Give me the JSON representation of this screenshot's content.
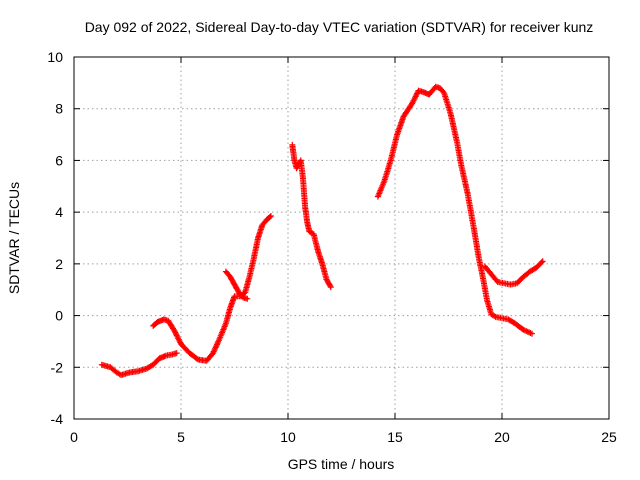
{
  "chart_data": {
    "type": "scatter",
    "title": "Day 092 of 2022, Sidereal Day-to-day VTEC variation (SDTVAR) for receiver kunz",
    "xlabel": "GPS time / hours",
    "ylabel": "SDTVAR / TECUs",
    "xlim": [
      0,
      25
    ],
    "ylim": [
      -4,
      10
    ],
    "xticks": [
      0,
      5,
      10,
      15,
      20,
      25
    ],
    "yticks": [
      -4,
      -2,
      0,
      2,
      4,
      6,
      8,
      10
    ],
    "grid": true,
    "marker": "plus",
    "color": "#ff0000",
    "series": [
      {
        "name": "seg1",
        "x": [
          1.3,
          1.7,
          2.0,
          2.2,
          2.6,
          3.0,
          3.4,
          3.7,
          4.0,
          4.3,
          4.6,
          4.8
        ],
        "y": [
          -1.9,
          -2.0,
          -2.2,
          -2.3,
          -2.2,
          -2.15,
          -2.05,
          -1.9,
          -1.65,
          -1.55,
          -1.5,
          -1.45
        ]
      },
      {
        "name": "seg2",
        "x": [
          3.7,
          3.9,
          4.2,
          4.4,
          4.7,
          5.0,
          5.4,
          5.8,
          6.2,
          6.5,
          6.8,
          7.1,
          7.3,
          7.5,
          7.8,
          8.0,
          8.2,
          8.4,
          8.6,
          8.8,
          9.0,
          9.2
        ],
        "y": [
          -0.4,
          -0.25,
          -0.15,
          -0.2,
          -0.6,
          -1.1,
          -1.45,
          -1.7,
          -1.75,
          -1.45,
          -0.9,
          -0.3,
          0.3,
          0.75,
          0.75,
          0.9,
          1.5,
          2.2,
          3.0,
          3.5,
          3.7,
          3.85
        ]
      },
      {
        "name": "seg3",
        "x": [
          7.1,
          7.3,
          7.5,
          7.7,
          7.9,
          8.1
        ],
        "y": [
          1.7,
          1.5,
          1.2,
          0.9,
          0.7,
          0.65
        ]
      },
      {
        "name": "seg4",
        "x": [
          10.2,
          10.3,
          10.4,
          10.6,
          10.7,
          10.8,
          10.9,
          11.0,
          11.2,
          11.4,
          11.6,
          11.8,
          12.0
        ],
        "y": [
          6.6,
          6.0,
          5.7,
          6.0,
          5.3,
          4.2,
          3.6,
          3.25,
          3.15,
          2.5,
          2.0,
          1.4,
          1.1
        ]
      },
      {
        "name": "seg5",
        "x": [
          14.2,
          14.5,
          14.8,
          15.1,
          15.4,
          15.8,
          16.1,
          16.3,
          16.6,
          16.9,
          17.1,
          17.3,
          17.6,
          17.9,
          18.1,
          18.4,
          18.7,
          18.9,
          19.1,
          19.3,
          19.5,
          19.7,
          20.0,
          20.3,
          20.6,
          21.0,
          21.4
        ],
        "y": [
          4.6,
          5.2,
          6.0,
          7.0,
          7.7,
          8.2,
          8.7,
          8.65,
          8.55,
          8.85,
          8.8,
          8.6,
          7.8,
          6.7,
          5.8,
          4.7,
          3.3,
          2.3,
          1.5,
          0.6,
          0.05,
          -0.05,
          -0.1,
          -0.15,
          -0.3,
          -0.55,
          -0.7
        ]
      },
      {
        "name": "seg6",
        "x": [
          19.2,
          19.5,
          19.8,
          20.1,
          20.4,
          20.7,
          21.0,
          21.3,
          21.6,
          21.9
        ],
        "y": [
          1.9,
          1.6,
          1.3,
          1.25,
          1.2,
          1.25,
          1.5,
          1.7,
          1.85,
          2.1
        ]
      }
    ]
  }
}
